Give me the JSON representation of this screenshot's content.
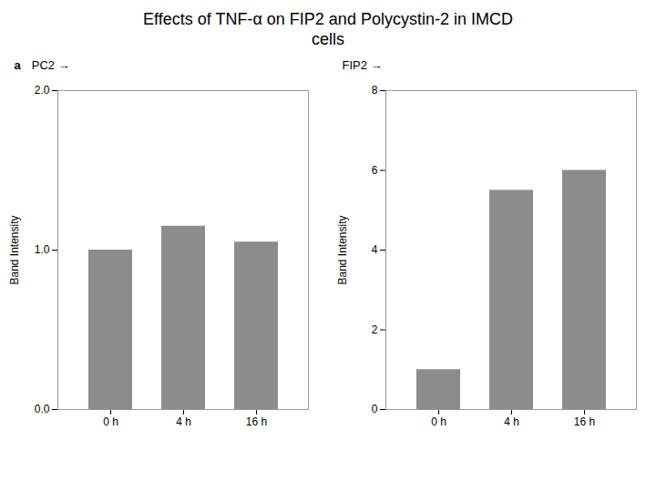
{
  "chart_data": [
    {
      "type": "bar",
      "title": "Effects of TNF-α on FIP2 and Polycystin-2 in IMCD",
      "subtitle": "cells",
      "annotations": [
        "a",
        "PC2 →"
      ],
      "categories": [
        "0 h",
        "4 h",
        "16 h"
      ],
      "values": [
        1.0,
        1.15,
        1.05
      ],
      "color": "#8c8c8c",
      "ylabel": "Band Intensity",
      "ylim": [
        0,
        2
      ],
      "yticks": [
        0,
        1,
        2
      ],
      "grid": false
    },
    {
      "type": "bar",
      "annotations": [
        "FIP2 →"
      ],
      "categories": [
        "0 h",
        "4 h",
        "16 h"
      ],
      "values": [
        1.0,
        5.5,
        6.0
      ],
      "color": "#8c8c8c",
      "ylabel": "Band Intensity",
      "ylim": [
        0,
        8
      ],
      "yticks": [
        0,
        2,
        4,
        6,
        8
      ],
      "grid": false
    }
  ]
}
